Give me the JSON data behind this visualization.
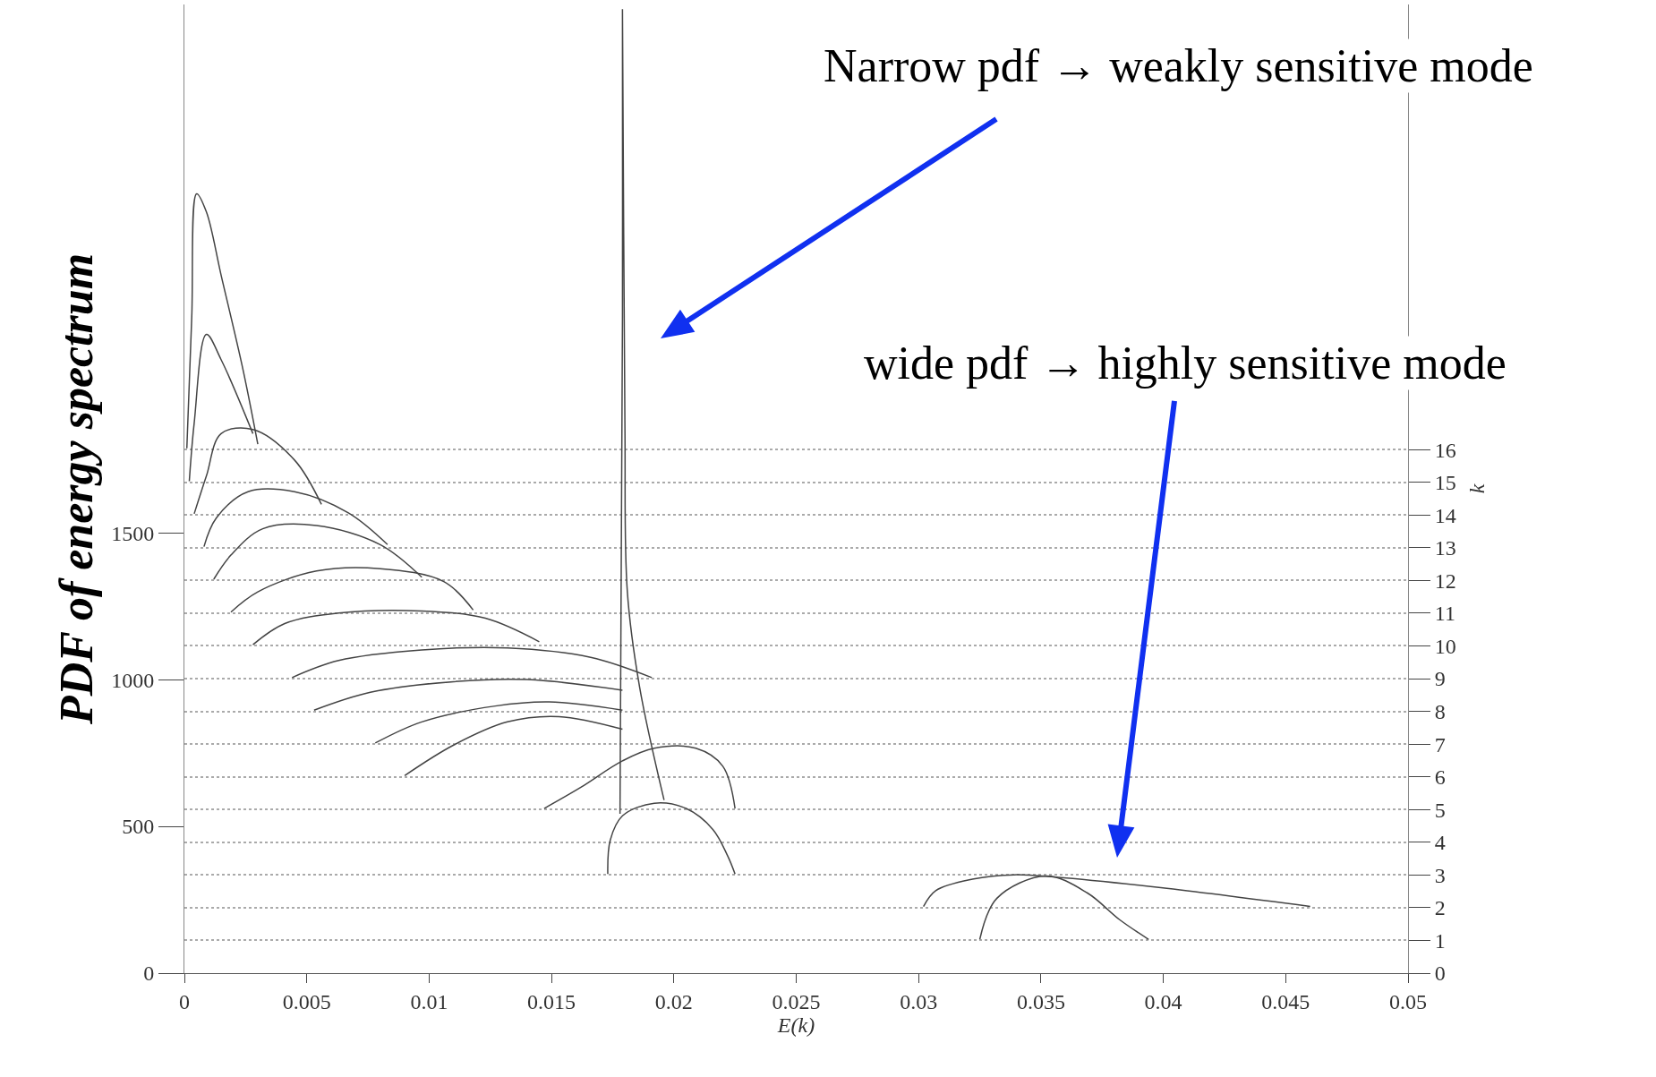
{
  "chart_data": {
    "type": "line",
    "xlabel": "E(k)",
    "ylabel": "PDF of energy spectrum",
    "y2label": "k",
    "xlim": [
      0,
      0.05
    ],
    "xticks": [
      0,
      0.005,
      0.01,
      0.015,
      0.02,
      0.025,
      0.03,
      0.035,
      0.04,
      0.045,
      0.05
    ],
    "ylim": [
      0,
      3300
    ],
    "yticks": [
      0,
      500,
      1000,
      1500
    ],
    "y2lim": [
      0,
      29.6
    ],
    "y2ticks": [
      0,
      1,
      2,
      3,
      4,
      5,
      6,
      7,
      8,
      9,
      10,
      11,
      12,
      13,
      14,
      15,
      16
    ],
    "grid": "y2",
    "marker": "none",
    "line_style": "solid",
    "annotations": [
      "Narrow pdf → weakly sensitive mode",
      "wide pdf → highly sensitive mode"
    ],
    "series": [
      {
        "color": "#444444",
        "x": [
          0.0325,
          0.0332,
          0.0352,
          0.0369,
          0.0382,
          0.0394
        ],
        "values": [
          115,
          255,
          331,
          273,
          183,
          115
        ]
      },
      {
        "color": "#444444",
        "x": [
          0.0302,
          0.0307,
          0.0322,
          0.0339,
          0.0356,
          0.0399,
          0.046
        ],
        "values": [
          227,
          281,
          320,
          335,
          327,
          291,
          227
        ]
      },
      {
        "color": "#444444",
        "x": [
          0.0173,
          0.0174,
          0.0179,
          0.0192,
          0.0205,
          0.0216,
          0.0222,
          0.0225
        ],
        "values": [
          338,
          453,
          536,
          579,
          561,
          489,
          399,
          338
        ]
      },
      {
        "color": "#444444",
        "x": [
          0.0147,
          0.0162,
          0.0179,
          0.0192,
          0.0209,
          0.022,
          0.0225
        ],
        "values": [
          561,
          633,
          723,
          766,
          766,
          705,
          561
        ]
      },
      {
        "color": "#444444",
        "x": [
          0.009,
          0.011,
          0.0132,
          0.0153,
          0.0179
        ],
        "values": [
          673,
          777,
          856,
          874,
          831
        ]
      },
      {
        "color": "#444444",
        "x": [
          0.0078,
          0.0097,
          0.0127,
          0.0149,
          0.0179
        ],
        "values": [
          784,
          856,
          910,
          924,
          896
        ]
      },
      {
        "color": "#444444",
        "x": [
          0.0053,
          0.0076,
          0.011,
          0.014,
          0.0179
        ],
        "values": [
          896,
          957,
          993,
          1000,
          964
        ]
      },
      {
        "color": "#444444",
        "x": [
          0.0044,
          0.0063,
          0.0097,
          0.0132,
          0.0166,
          0.0191
        ],
        "values": [
          1007,
          1065,
          1101,
          1108,
          1076,
          1007
        ]
      },
      {
        "color": "#444444",
        "x": [
          0.0028,
          0.0041,
          0.0063,
          0.0097,
          0.0123,
          0.0145
        ],
        "values": [
          1119,
          1191,
          1227,
          1234,
          1209,
          1129
        ]
      },
      {
        "color": "#444444",
        "x": [
          0.0019,
          0.003,
          0.0054,
          0.008,
          0.0106,
          0.0118
        ],
        "values": [
          1230,
          1299,
          1370,
          1378,
          1334,
          1237
        ]
      },
      {
        "color": "#444444",
        "x": [
          0.0012,
          0.0019,
          0.0032,
          0.0054,
          0.008,
          0.0097
        ],
        "values": [
          1342,
          1424,
          1514,
          1525,
          1460,
          1349
        ]
      },
      {
        "color": "#444444",
        "x": [
          0.0008,
          0.0013,
          0.0026,
          0.0045,
          0.0067,
          0.0083
        ],
        "values": [
          1453,
          1550,
          1640,
          1640,
          1568,
          1460
        ]
      },
      {
        "color": "#444444",
        "x": [
          0.0004,
          0.0009,
          0.0015,
          0.0028,
          0.0045,
          0.0056
        ],
        "values": [
          1565,
          1694,
          1838,
          1852,
          1748,
          1597
        ]
      },
      {
        "color": "#444444",
        "x": [
          0.0002,
          0.0004,
          0.0009,
          0.0015,
          0.0028
        ],
        "values": [
          1676,
          1874,
          2176,
          2090,
          1838
        ]
      },
      {
        "color": "#444444",
        "x": [
          0.0001,
          0.0003,
          0.0005,
          0.0009,
          0.0015,
          0.0024,
          0.003
        ],
        "values": [
          1788,
          2234,
          2655,
          2593,
          2378,
          2054,
          1802
        ]
      },
      {
        "color": "#444444",
        "x": [
          0.0178,
          0.0179,
          0.0179,
          0.018,
          0.0181,
          0.0186,
          0.0196
        ],
        "values": [
          543,
          2234,
          3284,
          1874,
          1299,
          975,
          590
        ]
      }
    ]
  }
}
